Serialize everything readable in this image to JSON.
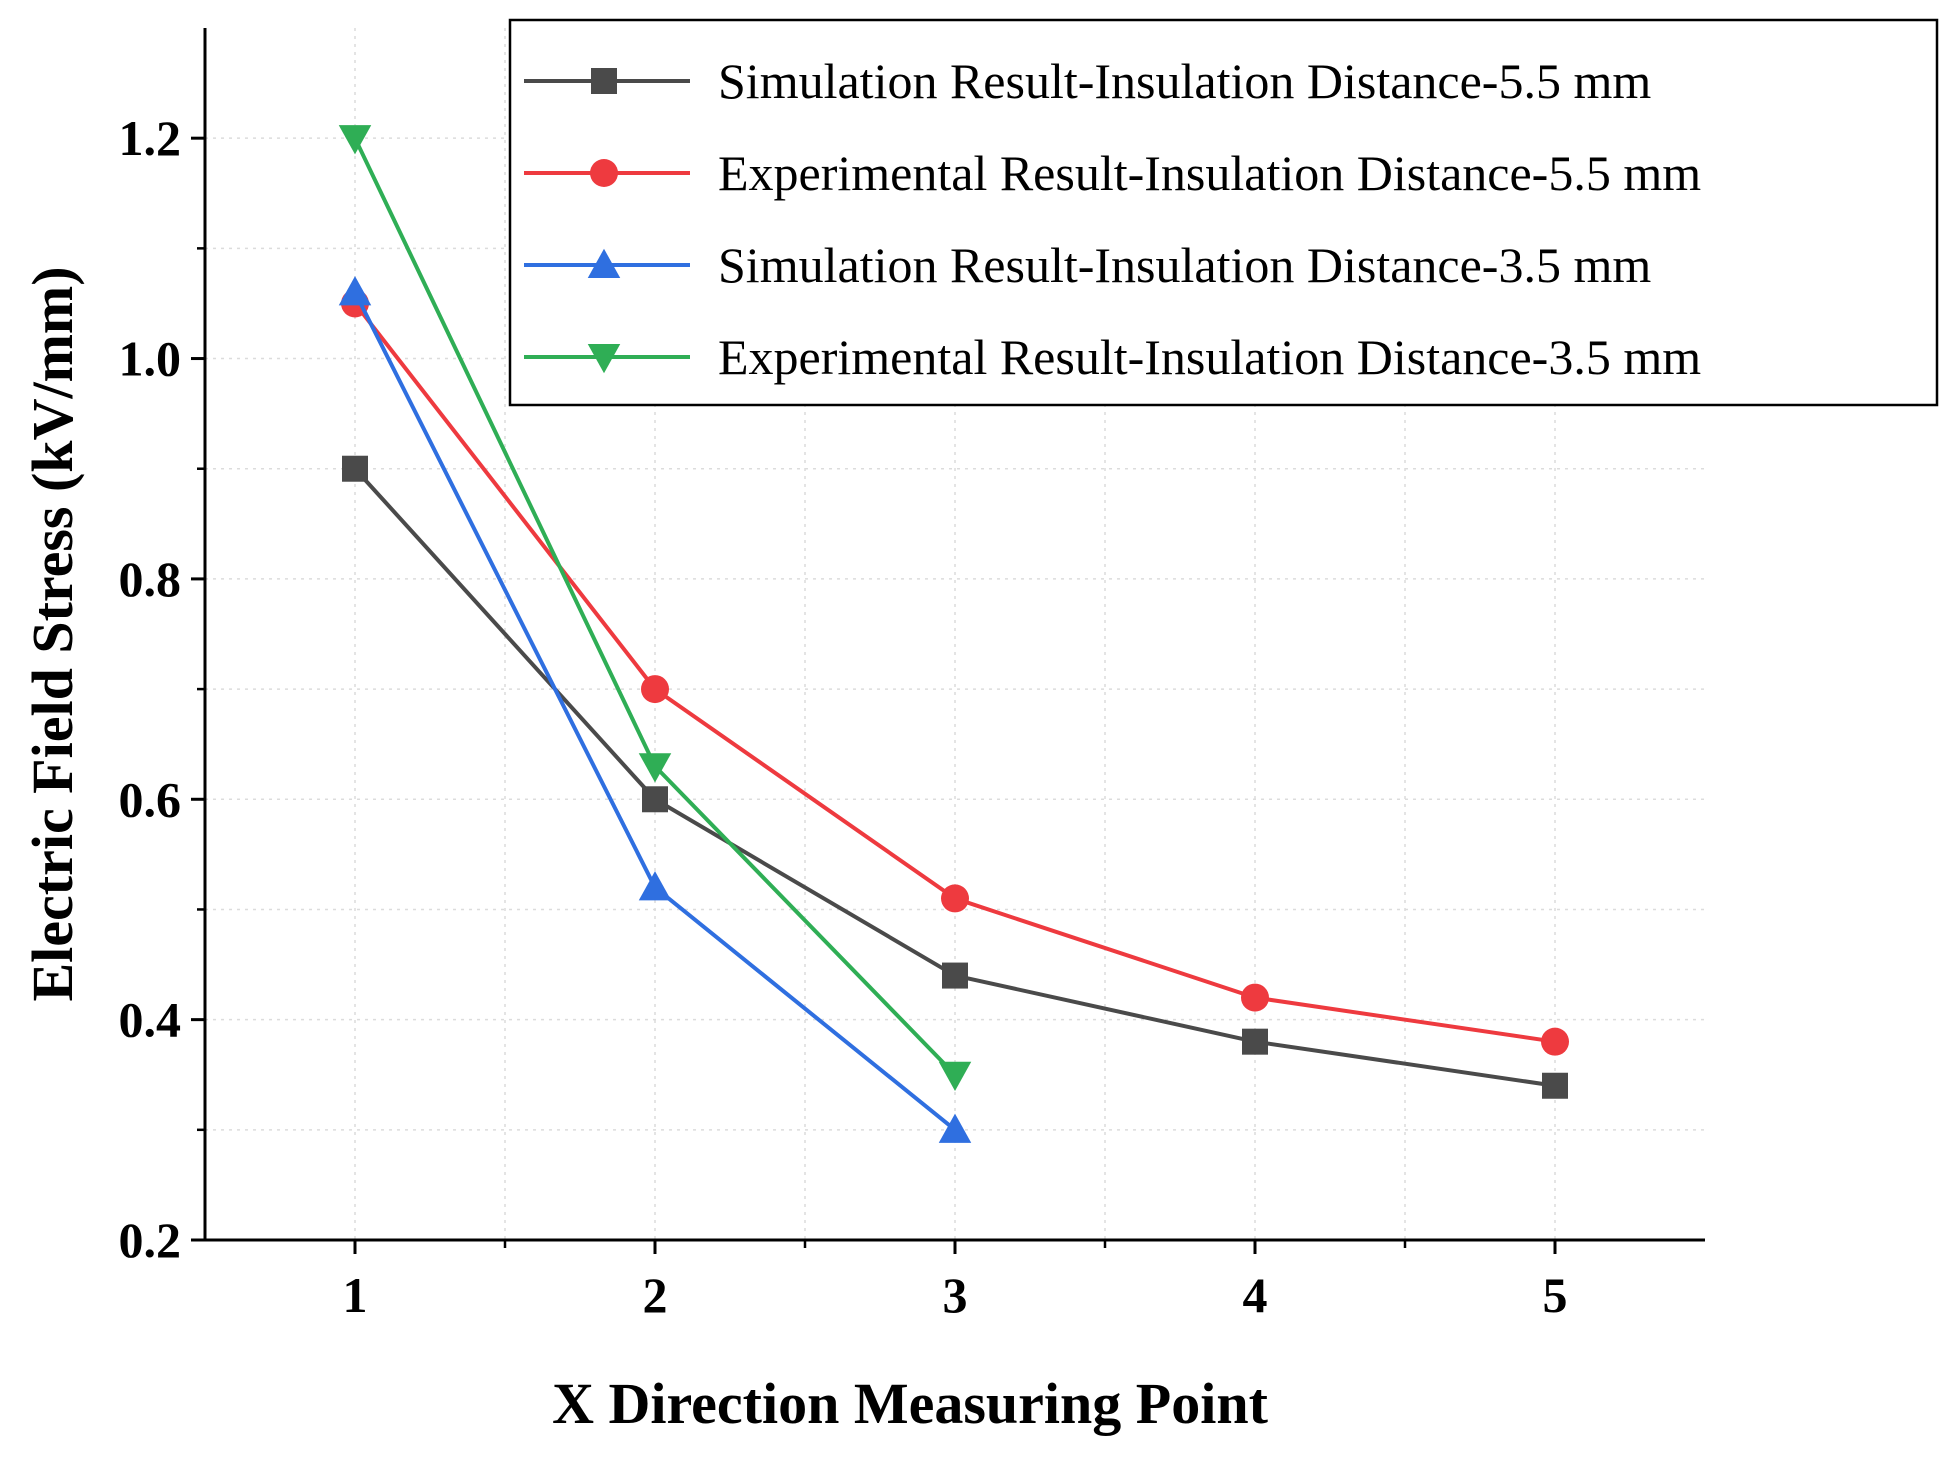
{
  "chart_data": {
    "type": "line",
    "title": "",
    "xlabel": "X Direction Measuring Point",
    "ylabel": "Electric Field Stress (kV/mm)",
    "x": [
      1,
      2,
      3,
      4,
      5
    ],
    "xlim": [
      0.5,
      5.5
    ],
    "ylim": [
      0.2,
      1.3
    ],
    "x_ticks": [
      1,
      2,
      3,
      4,
      5
    ],
    "x_tick_labels": [
      "1",
      "2",
      "3",
      "4",
      "5"
    ],
    "y_ticks": [
      0.2,
      0.4,
      0.6,
      0.8,
      1.0,
      1.2
    ],
    "y_tick_labels": [
      "0.2",
      "0.4",
      "0.6",
      "0.8",
      "1.0",
      "1.2"
    ],
    "grid": true,
    "legend_position": "top-right",
    "series": [
      {
        "name": "Simulation Result-Insulation Distance-5.5 mm",
        "x": [
          1,
          2,
          3,
          4,
          5
        ],
        "values": [
          0.9,
          0.6,
          0.44,
          0.38,
          0.34
        ],
        "color": "#4a4a4a",
        "marker": "square"
      },
      {
        "name": "Experimental Result-Insulation Distance-5.5 mm",
        "x": [
          1,
          2,
          3,
          4,
          5
        ],
        "values": [
          1.05,
          0.7,
          0.51,
          0.42,
          0.38
        ],
        "color": "#ee3a3f",
        "marker": "circle"
      },
      {
        "name": "Simulation Result-Insulation Distance-3.5 mm",
        "x": [
          1,
          2,
          3
        ],
        "values": [
          1.06,
          0.52,
          0.3
        ],
        "color": "#2f6fe0",
        "marker": "triangle-up"
      },
      {
        "name": "Experimental Result-Insulation Distance-3.5 mm",
        "x": [
          1,
          2,
          3
        ],
        "values": [
          1.2,
          0.63,
          0.35
        ],
        "color": "#2fae55",
        "marker": "triangle-down"
      }
    ]
  }
}
